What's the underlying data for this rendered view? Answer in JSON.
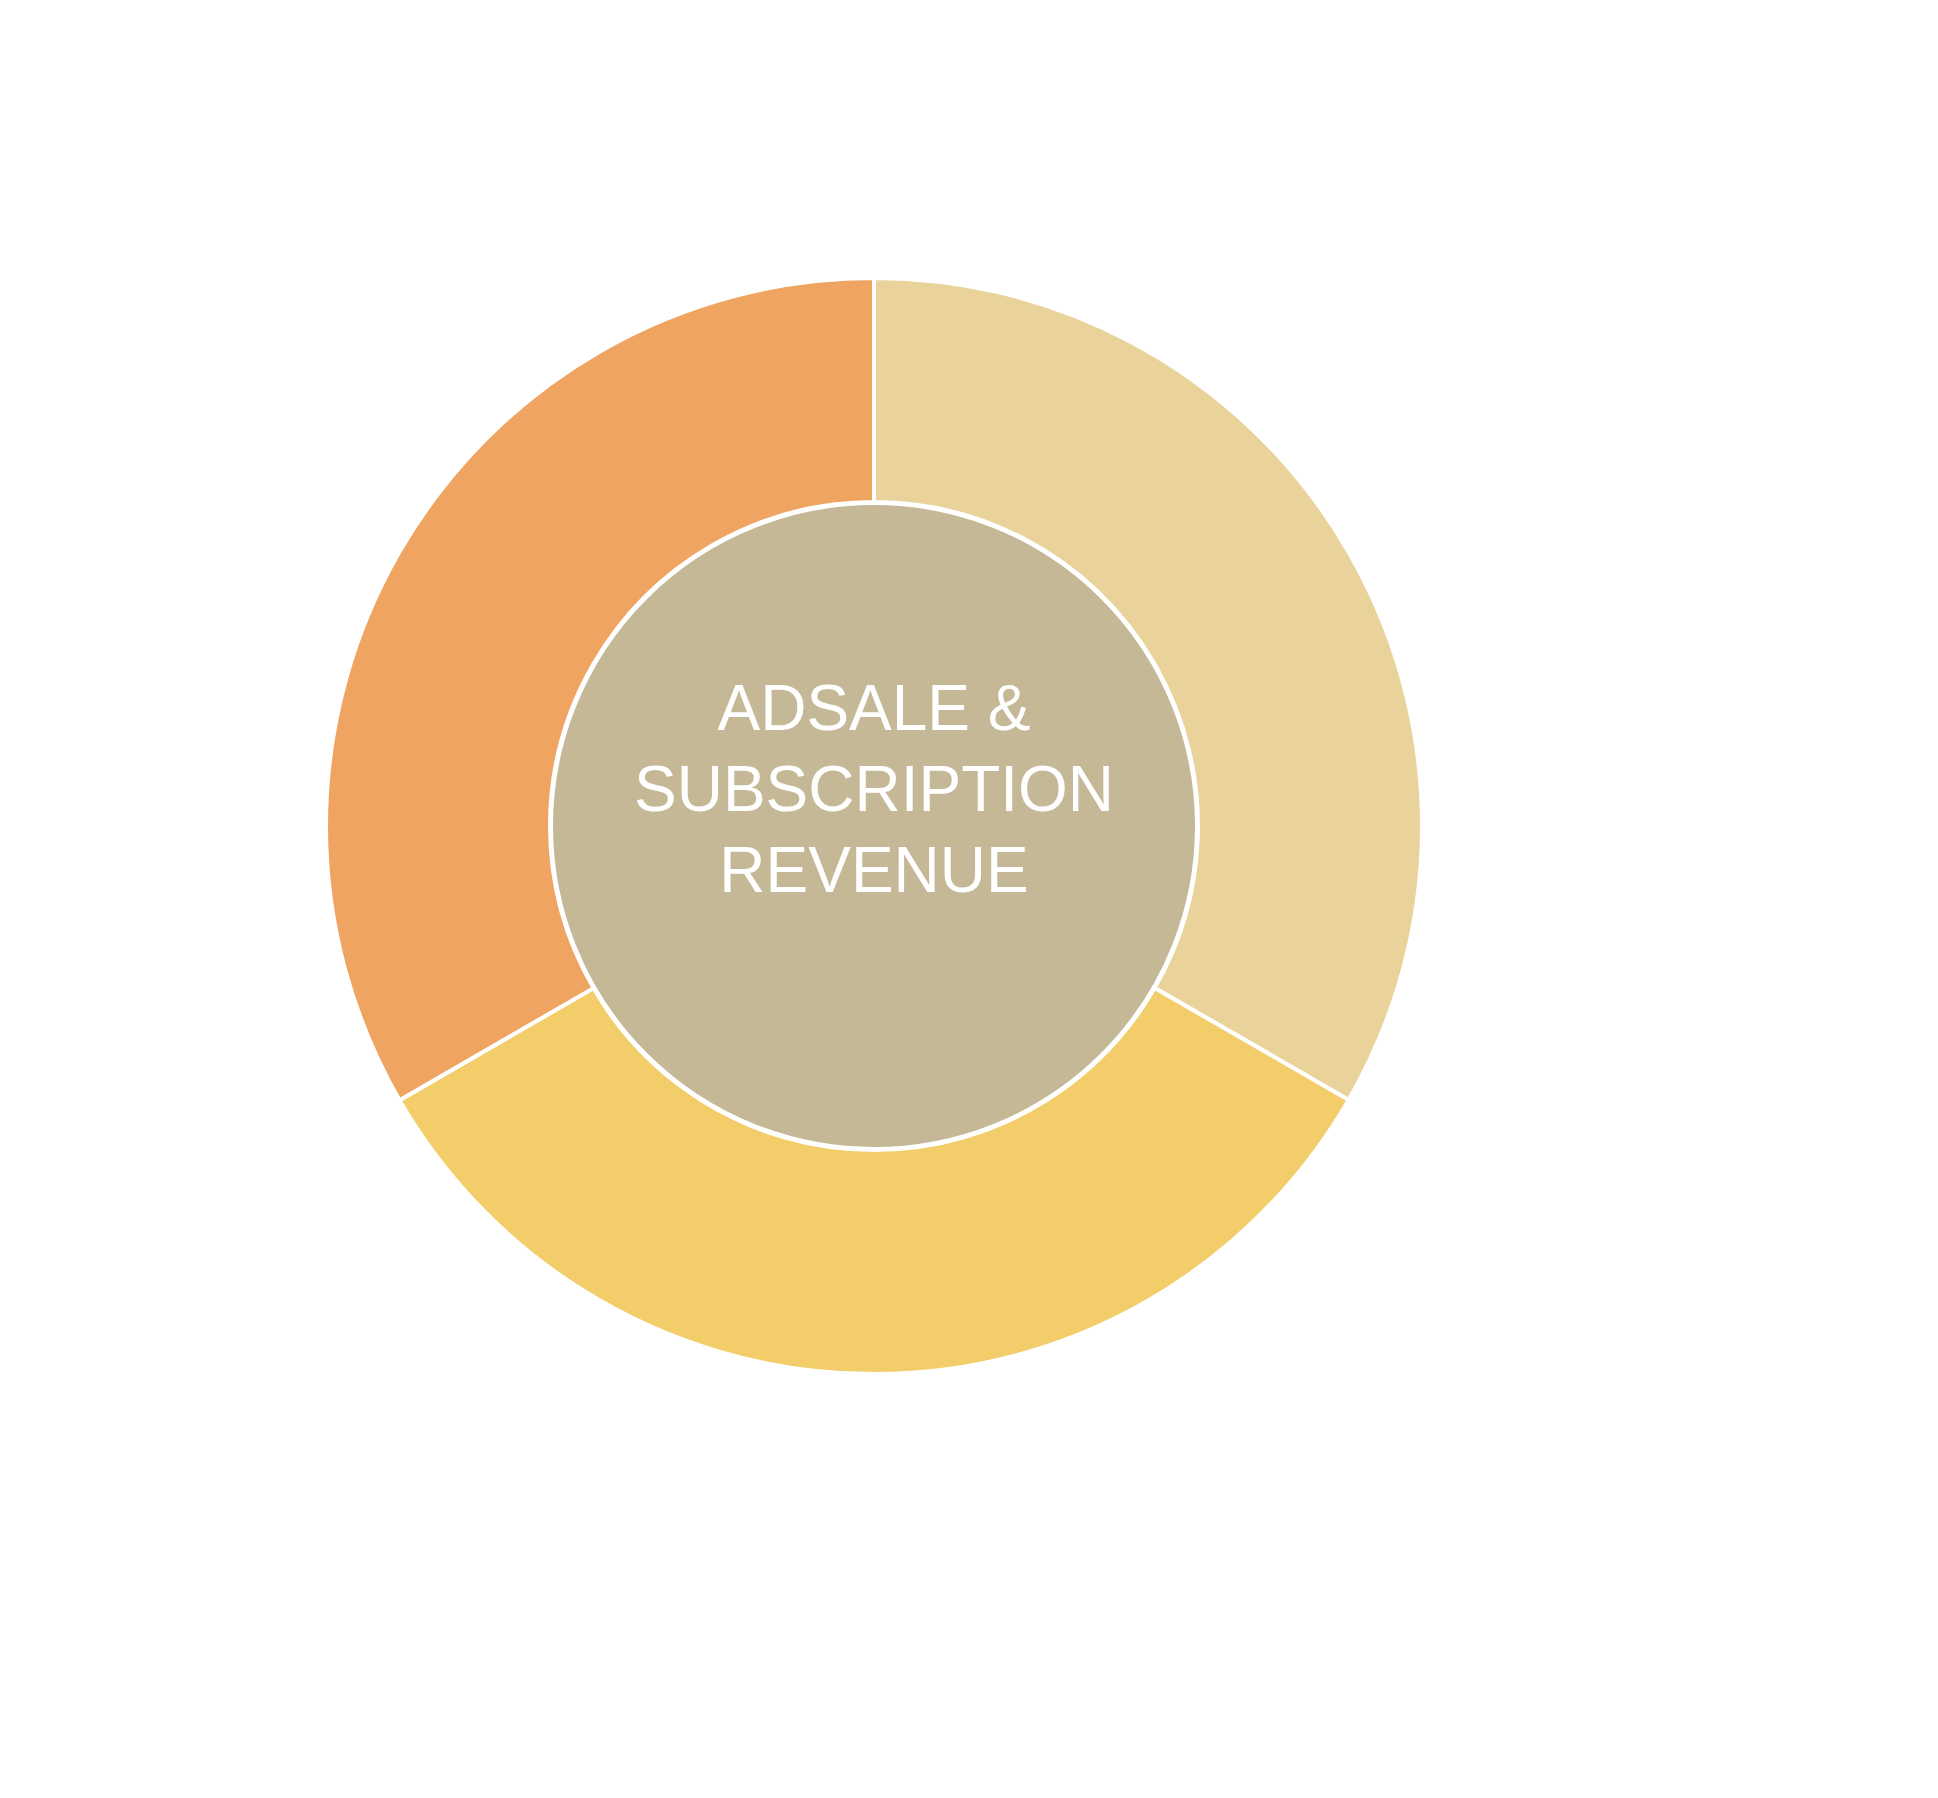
{
  "chart_data": {
    "type": "donut",
    "title": "ADSALE & SUBSCRIPTION REVENUE",
    "categories": [
      null,
      null,
      null
    ],
    "values": [
      33.33,
      33.33,
      33.34
    ],
    "colors": [
      "#ead39b",
      "#f3cd69",
      "#efa561"
    ]
  }
}
